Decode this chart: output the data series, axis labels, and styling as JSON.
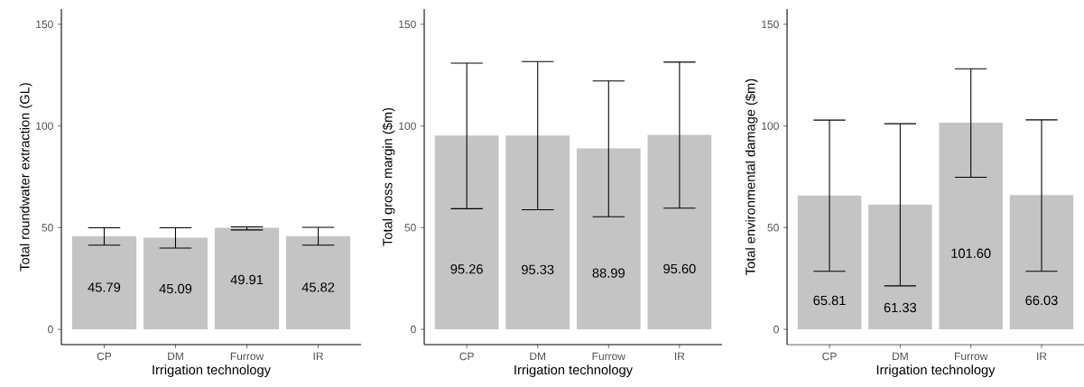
{
  "chart_data": [
    {
      "type": "bar",
      "categories": [
        "CP",
        "DM",
        "Furrow",
        "IR"
      ],
      "values": [
        45.79,
        45.09,
        49.91,
        45.82
      ],
      "value_labels": [
        "45.79",
        "45.09",
        "49.91",
        "45.82"
      ],
      "errors": [
        [
          41.4,
          49.9
        ],
        [
          40.0,
          49.9
        ],
        [
          48.9,
          50.4
        ],
        [
          41.4,
          50.2
        ]
      ],
      "color": "#c4c4c4",
      "ylim": [
        -7.5,
        157.5
      ],
      "yticks": [
        0,
        50,
        100,
        150
      ],
      "xlabel": "Irrigation technology",
      "ylabel": "Total roundwater extraction (GL)"
    },
    {
      "type": "bar",
      "categories": [
        "CP",
        "DM",
        "Furrow",
        "IR"
      ],
      "values": [
        95.26,
        95.33,
        88.99,
        95.6
      ],
      "value_labels": [
        "95.26",
        "95.33",
        "88.99",
        "95.60"
      ],
      "errors": [
        [
          59.3,
          130.9
        ],
        [
          58.8,
          131.7
        ],
        [
          55.4,
          122.1
        ],
        [
          59.6,
          131.4
        ]
      ],
      "color": "#c4c4c4",
      "ylim": [
        -7.5,
        157.5
      ],
      "yticks": [
        0,
        50,
        100,
        150
      ],
      "xlabel": "Irrigation technology",
      "ylabel": "Total gross margin ($m)"
    },
    {
      "type": "bar",
      "categories": [
        "CP",
        "DM",
        "Furrow",
        "IR"
      ],
      "values": [
        65.81,
        61.33,
        101.6,
        66.03
      ],
      "value_labels": [
        "65.81",
        "61.33",
        "101.60",
        "66.03"
      ],
      "errors": [
        [
          28.5,
          102.9
        ],
        [
          21.4,
          101.1
        ],
        [
          74.8,
          128.1
        ],
        [
          28.5,
          103.0
        ]
      ],
      "color": "#c4c4c4",
      "ylim": [
        -7.5,
        157.5
      ],
      "yticks": [
        0,
        50,
        100,
        150
      ],
      "xlabel": "Irrigation technology",
      "ylabel": "Total environmental damage ($m)"
    }
  ]
}
